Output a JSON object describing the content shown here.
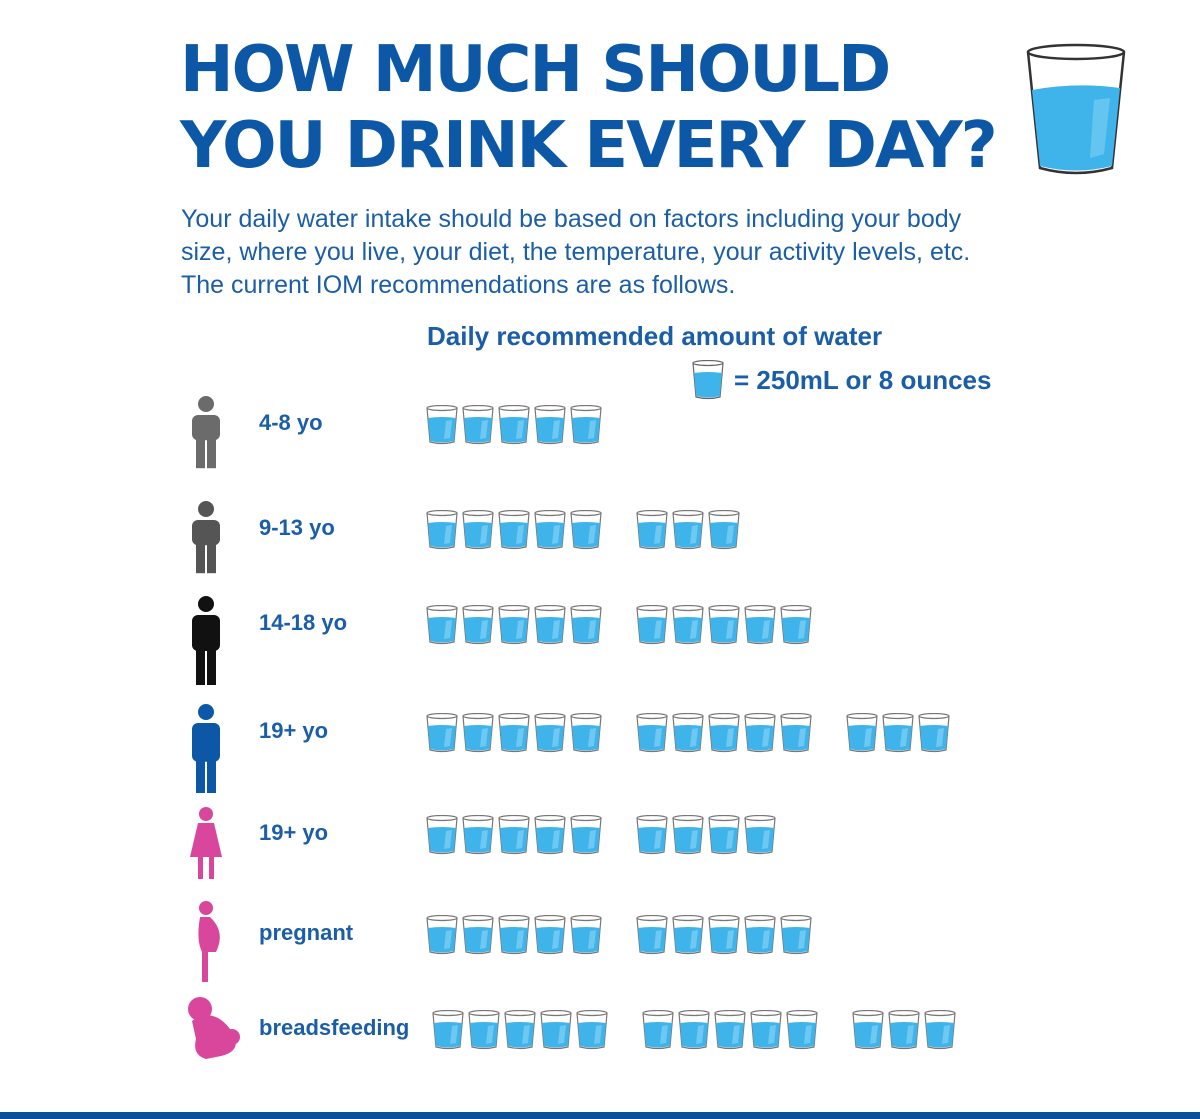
{
  "header": {
    "title_line1": "HOW MUCH SHOULD",
    "title_line2": "YOU DRINK EVERY DAY?",
    "intro": "Your daily water intake should be based on factors including your body size, where you live, your diet, the temperature, your activity levels, etc. The current IOM recommendations are as follows."
  },
  "chart_data": {
    "type": "pictogram",
    "title": "Daily recommended amount of water",
    "unit_legend": "= 250mL or 8 ounces",
    "categories": [
      "4-8 yo",
      "9-13 yo",
      "14-18 yo",
      "19+ yo",
      "19+ yo",
      "pregnant",
      "breadsfeeding"
    ],
    "values": [
      5,
      8,
      10,
      13,
      9,
      10,
      13
    ],
    "icons": [
      "child-icon",
      "child-icon",
      "teen-icon",
      "man-icon",
      "woman-icon",
      "pregnant-woman-icon",
      "breastfeeding-woman-icon"
    ],
    "icon_colors": [
      "#6b6b6b",
      "#555555",
      "#111111",
      "#0d57a7",
      "#d9479d",
      "#d9479d",
      "#d9479d"
    ]
  },
  "colors": {
    "brand": "#0d57a7",
    "water": "#3fb4ea",
    "pink": "#d9479d"
  }
}
